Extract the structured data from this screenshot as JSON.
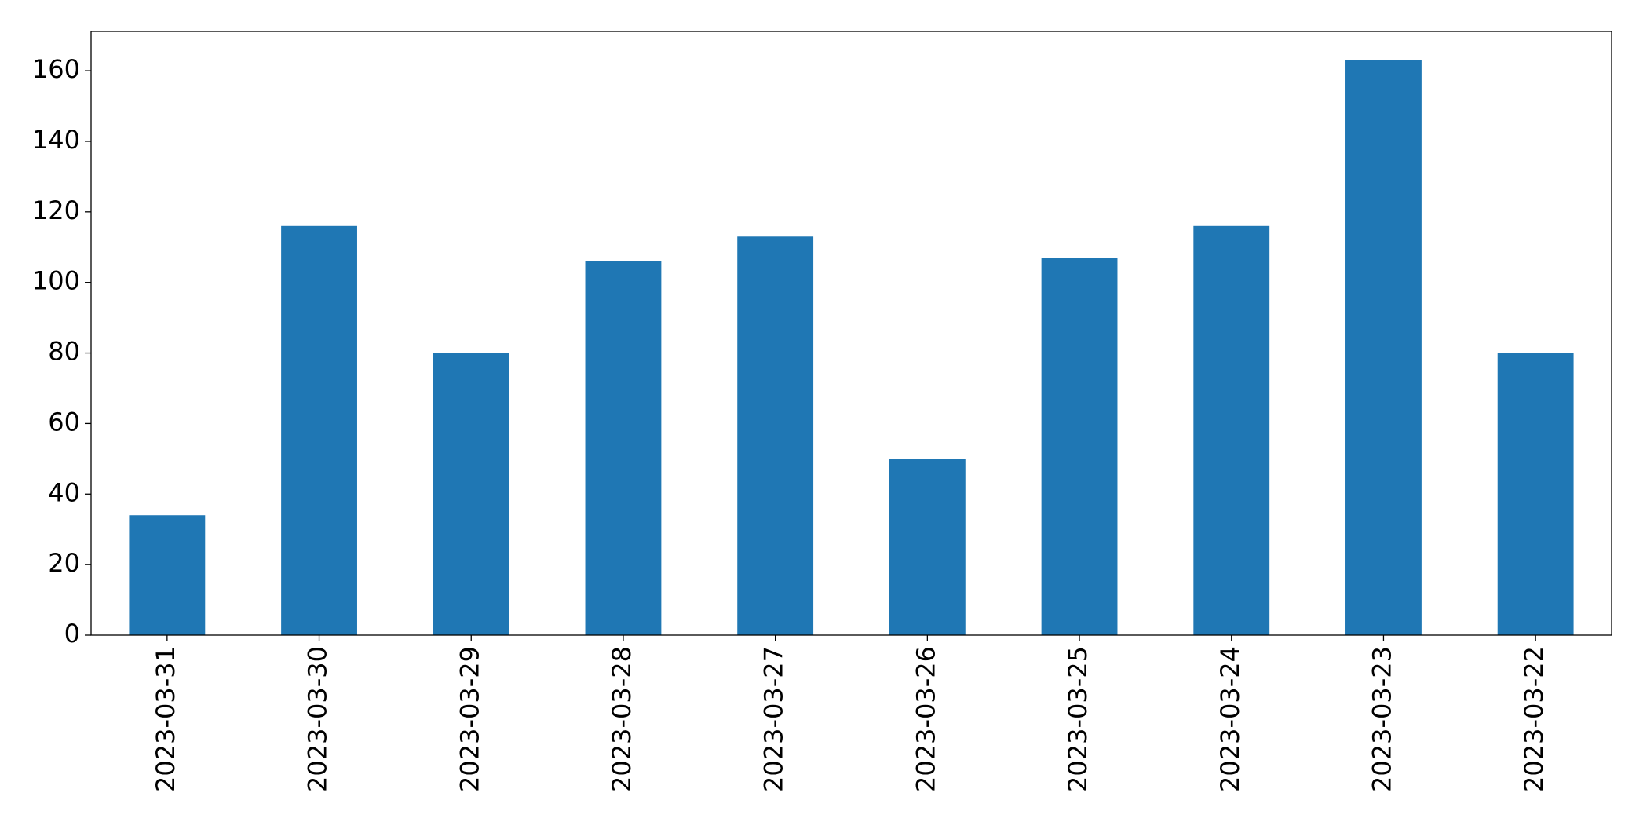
{
  "chart_data": {
    "type": "bar",
    "categories": [
      "2023-03-31",
      "2023-03-30",
      "2023-03-29",
      "2023-03-28",
      "2023-03-27",
      "2023-03-26",
      "2023-03-25",
      "2023-03-24",
      "2023-03-23",
      "2023-03-22"
    ],
    "values": [
      34,
      116,
      80,
      106,
      113,
      50,
      107,
      116,
      163,
      80
    ],
    "color": "#1f77b4",
    "ylim": [
      0,
      171.15
    ],
    "yticks": [
      0,
      20,
      40,
      60,
      80,
      100,
      120,
      140,
      160
    ],
    "grid": false
  }
}
